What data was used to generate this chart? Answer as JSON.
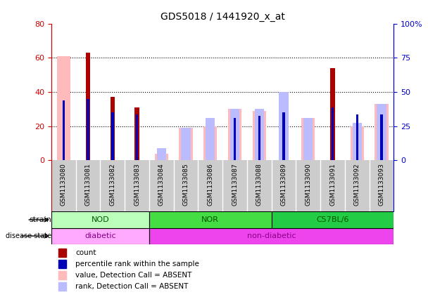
{
  "title": "GDS5018 / 1441920_x_at",
  "samples": [
    "GSM1133080",
    "GSM1133081",
    "GSM1133082",
    "GSM1133083",
    "GSM1133084",
    "GSM1133085",
    "GSM1133086",
    "GSM1133087",
    "GSM1133088",
    "GSM1133089",
    "GSM1133090",
    "GSM1133091",
    "GSM1133092",
    "GSM1133093"
  ],
  "count": [
    0,
    63,
    37,
    31,
    0,
    0,
    0,
    0,
    0,
    0,
    0,
    54,
    0,
    0
  ],
  "percentile_rank": [
    35,
    36,
    28,
    27,
    0,
    0,
    0,
    25,
    26,
    28,
    0,
    31,
    27,
    27
  ],
  "value_absent": [
    61,
    0,
    0,
    0,
    4,
    19,
    20,
    30,
    29,
    0,
    25,
    0,
    20,
    33
  ],
  "rank_absent": [
    0,
    0,
    0,
    0,
    7,
    19,
    25,
    30,
    30,
    40,
    25,
    0,
    22,
    33
  ],
  "strain_groups": [
    {
      "label": "NOD",
      "start": 0,
      "end": 3,
      "color": "#bbffbb"
    },
    {
      "label": "NOR",
      "start": 4,
      "end": 8,
      "color": "#44dd44"
    },
    {
      "label": "C57BL/6",
      "start": 9,
      "end": 13,
      "color": "#22cc44"
    }
  ],
  "disease_groups": [
    {
      "label": "diabetic",
      "start": 0,
      "end": 3,
      "color": "#ffaaff"
    },
    {
      "label": "non-diabetic",
      "start": 4,
      "end": 13,
      "color": "#ee44ee"
    }
  ],
  "left_ylim": [
    0,
    80
  ],
  "right_ylim": [
    0,
    100
  ],
  "left_yticks": [
    0,
    20,
    40,
    60,
    80
  ],
  "right_yticks": [
    0,
    25,
    50,
    75,
    100
  ],
  "right_yticklabels": [
    "0",
    "25",
    "50",
    "75",
    "100%"
  ],
  "left_ycolor": "#cc0000",
  "right_ycolor": "#0000cc",
  "count_color": "#aa0000",
  "percentile_color": "#0000bb",
  "value_absent_color": "#ffbbbb",
  "rank_absent_color": "#bbbbff",
  "bg_color": "#ffffff",
  "xlabel_area_color": "#cccccc",
  "strain_text_color": "#005500",
  "disease_text_color": "#880088"
}
